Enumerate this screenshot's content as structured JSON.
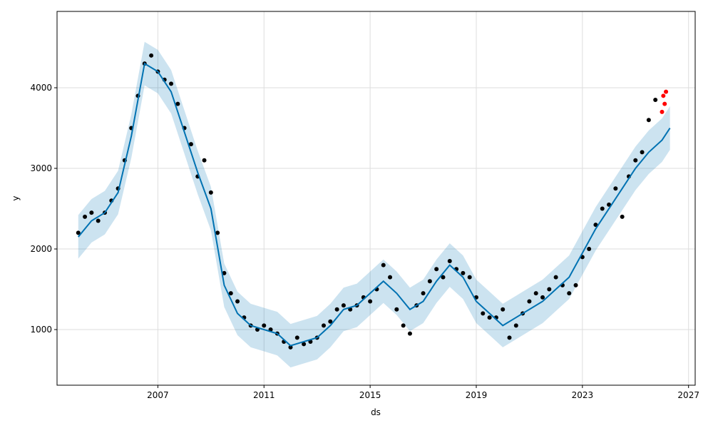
{
  "chart_data": {
    "type": "forecast",
    "x_label": "ds",
    "y_label": "y",
    "xlim": [
      2003.2,
      2027.25
    ],
    "ylim": [
      310,
      4947
    ],
    "xticks": [
      2007,
      2011,
      2015,
      2019,
      2023,
      2027
    ],
    "yticks": [
      1000,
      2000,
      3000,
      4000
    ],
    "grid": true,
    "series": [
      {
        "type": "band",
        "color": "#0072b2",
        "x": [
          2004,
          2004.5,
          2005,
          2005.5,
          2006,
          2006.5,
          2007,
          2007.5,
          2008,
          2008.5,
          2009,
          2009.5,
          2010,
          2010.5,
          2011,
          2011.5,
          2012,
          2012.5,
          2013,
          2013.5,
          2014,
          2014.5,
          2015,
          2015.5,
          2016,
          2016.5,
          2017,
          2017.5,
          2018,
          2018.5,
          2019,
          2019.5,
          2020,
          2020.5,
          2021,
          2021.5,
          2022,
          2022.5,
          2023,
          2023.5,
          2024,
          2024.5,
          2025,
          2025.5,
          2026,
          2026.3
        ],
        "upper": [
          2420,
          2620,
          2720,
          2970,
          3670,
          4570,
          4470,
          4220,
          3720,
          3220,
          2770,
          1820,
          1470,
          1320,
          1270,
          1220,
          1070,
          1120,
          1170,
          1320,
          1520,
          1570,
          1720,
          1870,
          1720,
          1520,
          1620,
          1870,
          2070,
          1920,
          1620,
          1470,
          1320,
          1420,
          1520,
          1620,
          1770,
          1920,
          2220,
          2520,
          2770,
          3020,
          3270,
          3470,
          3620,
          3770
        ],
        "lower": [
          1880,
          2080,
          2180,
          2430,
          3130,
          4030,
          3930,
          3680,
          3180,
          2680,
          2230,
          1280,
          930,
          780,
          730,
          680,
          530,
          580,
          630,
          780,
          980,
          1030,
          1180,
          1330,
          1180,
          980,
          1080,
          1330,
          1530,
          1380,
          1080,
          930,
          780,
          880,
          980,
          1080,
          1230,
          1380,
          1680,
          1980,
          2230,
          2480,
          2730,
          2930,
          3080,
          3230
        ]
      },
      {
        "type": "scatter",
        "color": "#000000",
        "x": [
          2004,
          2004.25,
          2004.5,
          2004.75,
          2005,
          2005.25,
          2005.5,
          2005.75,
          2006,
          2006.25,
          2006.5,
          2006.75,
          2007,
          2007.25,
          2007.5,
          2007.75,
          2008,
          2008.25,
          2008.5,
          2008.75,
          2009,
          2009.25,
          2009.5,
          2009.75,
          2010,
          2010.25,
          2010.5,
          2010.75,
          2011,
          2011.25,
          2011.5,
          2011.75,
          2012,
          2012.25,
          2012.5,
          2012.75,
          2013,
          2013.25,
          2013.5,
          2013.75,
          2014,
          2014.25,
          2014.5,
          2014.75,
          2015,
          2015.25,
          2015.5,
          2015.75,
          2016,
          2016.25,
          2016.5,
          2016.75,
          2017,
          2017.25,
          2017.5,
          2017.75,
          2018,
          2018.25,
          2018.5,
          2018.75,
          2019,
          2019.25,
          2019.5,
          2019.75,
          2020,
          2020.25,
          2020.5,
          2020.75,
          2021,
          2021.25,
          2021.5,
          2021.75,
          2022,
          2022.25,
          2022.5,
          2022.75,
          2023,
          2023.25,
          2023.5,
          2023.75,
          2024,
          2024.25,
          2024.5,
          2024.75,
          2025,
          2025.25,
          2025.5,
          2025.75
        ],
        "values": [
          2200,
          2400,
          2450,
          2350,
          2450,
          2600,
          2750,
          3100,
          3500,
          3900,
          4300,
          4400,
          4200,
          4100,
          4050,
          3800,
          3500,
          3300,
          2900,
          3100,
          2700,
          2200,
          1700,
          1450,
          1350,
          1150,
          1050,
          1000,
          1050,
          1000,
          950,
          850,
          780,
          900,
          820,
          850,
          900,
          1050,
          1100,
          1250,
          1300,
          1250,
          1300,
          1400,
          1350,
          1500,
          1800,
          1650,
          1250,
          1050,
          950,
          1300,
          1450,
          1600,
          1750,
          1650,
          1850,
          1750,
          1700,
          1650,
          1400,
          1200,
          1150,
          1150,
          1250,
          900,
          1050,
          1200,
          1350,
          1450,
          1400,
          1500,
          1650,
          1550,
          1450,
          1550,
          1900,
          2000,
          2300,
          2500,
          2550,
          2750,
          2400,
          2900,
          3100,
          3200,
          3600,
          3850
        ]
      },
      {
        "type": "line",
        "color": "#0072b2",
        "x": [
          2004,
          2004.5,
          2005,
          2005.5,
          2006,
          2006.5,
          2007,
          2007.5,
          2008,
          2008.5,
          2009,
          2009.5,
          2010,
          2010.5,
          2011,
          2011.5,
          2012,
          2012.5,
          2013,
          2013.5,
          2014,
          2014.5,
          2015,
          2015.5,
          2016,
          2016.5,
          2017,
          2017.5,
          2018,
          2018.5,
          2019,
          2019.5,
          2020,
          2020.5,
          2021,
          2021.5,
          2022,
          2022.5,
          2023,
          2023.5,
          2024,
          2024.5,
          2025,
          2025.5,
          2026,
          2026.3
        ],
        "values": [
          2150,
          2350,
          2450,
          2700,
          3400,
          4300,
          4200,
          3950,
          3450,
          2950,
          2500,
          1550,
          1200,
          1050,
          1000,
          950,
          800,
          850,
          900,
          1050,
          1250,
          1300,
          1450,
          1600,
          1450,
          1250,
          1350,
          1600,
          1800,
          1650,
          1350,
          1200,
          1050,
          1150,
          1250,
          1350,
          1500,
          1650,
          1950,
          2250,
          2500,
          2750,
          3000,
          3200,
          3350,
          3500
        ]
      },
      {
        "type": "scatter",
        "color": "#ff0000",
        "x": [
          2026.0,
          2026.05,
          2026.1,
          2026.15
        ],
        "values": [
          3700,
          3900,
          3800,
          3950
        ]
      }
    ]
  }
}
